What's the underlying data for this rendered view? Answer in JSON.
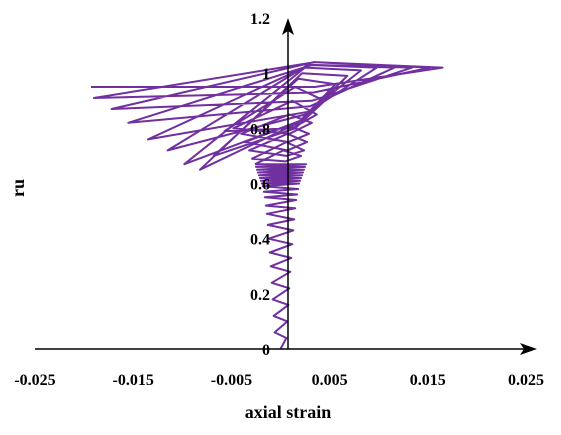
{
  "chart_data": {
    "type": "line",
    "title": "",
    "xlabel": "axial strain",
    "ylabel": "ru",
    "xlim": [
      -0.025,
      0.025
    ],
    "ylim": [
      0,
      1.2
    ],
    "x_ticks": [
      -0.025,
      -0.015,
      -0.005,
      0.005,
      0.015,
      0.025
    ],
    "x_tick_labels": [
      "-0.025",
      "-0.015",
      "-0.005",
      "0.005",
      "0.015",
      "0.025"
    ],
    "y_ticks": [
      0,
      0.2,
      0.4,
      0.6,
      0.8,
      1,
      1.2
    ],
    "y_tick_labels": [
      "0",
      "0.2",
      "0.4",
      "0.6",
      "0.8",
      "1",
      "1.2"
    ],
    "grid": false,
    "legend": "none",
    "series_color": "#7030A0",
    "series": [
      {
        "x": [
          0.0,
          0.0006,
          -0.0006,
          0.0007,
          -0.0007,
          0.0008,
          -0.0008,
          0.0009,
          -0.0009,
          0.001,
          -0.001,
          0.0011,
          -0.0011,
          0.0012,
          -0.0012,
          0.0013,
          -0.0013,
          0.0014,
          -0.0014,
          0.0015,
          -0.0015,
          0.0016,
          -0.0016,
          0.0017,
          -0.0017,
          0.0018,
          -0.0018,
          0.0019,
          -0.0019,
          0.002,
          -0.002,
          0.0021,
          -0.0021,
          0.0022,
          -0.0022,
          0.0023,
          -0.0023,
          0.0024,
          -0.0024,
          0.0025,
          -0.0025,
          0.0026,
          -0.0026
        ],
        "y": [
          0.0,
          0.04,
          0.06,
          0.1,
          0.12,
          0.16,
          0.18,
          0.22,
          0.24,
          0.28,
          0.3,
          0.33,
          0.35,
          0.38,
          0.4,
          0.43,
          0.45,
          0.47,
          0.49,
          0.51,
          0.52,
          0.54,
          0.55,
          0.56,
          0.57,
          0.58,
          0.59,
          0.6,
          0.6,
          0.61,
          0.61,
          0.62,
          0.62,
          0.63,
          0.63,
          0.64,
          0.64,
          0.65,
          0.65,
          0.66,
          0.66,
          0.67,
          0.67
        ]
      },
      {
        "x": [
          -0.0026,
          0.0003,
          0.0021,
          0.0005,
          -0.0029,
          0.0006,
          0.0024,
          0.0006,
          -0.0032,
          0.0007,
          0.0027,
          0.0007,
          -0.0036,
          0.0008,
          0.0029,
          0.0008,
          -0.004,
          0.0009,
          0.0032,
          0.0009,
          -0.0048,
          0.0012,
          0.0037,
          0.0012,
          -0.0057,
          0.0015,
          0.0045,
          0.0015,
          -0.0068,
          0.0018,
          0.0056,
          0.0018,
          -0.0082,
          0.0022,
          0.0068,
          0.0022,
          -0.0098,
          0.0025,
          0.0082,
          0.0025,
          -0.0115,
          0.0028,
          0.0098,
          0.0028,
          -0.0135,
          0.003,
          0.0116,
          0.003,
          -0.0155,
          0.0032,
          0.0134,
          0.0032,
          -0.0172,
          0.0034,
          0.0152,
          0.0034,
          -0.019,
          0.0035,
          0.0165,
          0.0035,
          -0.0193
        ],
        "y": [
          0.67,
          0.72,
          0.7,
          0.68,
          0.69,
          0.75,
          0.72,
          0.7,
          0.72,
          0.78,
          0.75,
          0.72,
          0.75,
          0.81,
          0.78,
          0.75,
          0.78,
          0.85,
          0.82,
          0.78,
          0.8,
          0.9,
          0.85,
          0.8,
          0.79,
          0.95,
          0.9,
          0.8,
          0.7,
          0.98,
          0.96,
          0.82,
          0.65,
          1.0,
          0.99,
          0.83,
          0.67,
          1.02,
          1.01,
          0.85,
          0.72,
          1.03,
          1.02,
          0.86,
          0.76,
          1.03,
          1.02,
          0.88,
          0.82,
          1.03,
          1.02,
          0.9,
          0.87,
          1.04,
          1.02,
          0.93,
          0.91,
          1.04,
          1.02,
          0.95,
          0.95
        ]
      }
    ]
  }
}
